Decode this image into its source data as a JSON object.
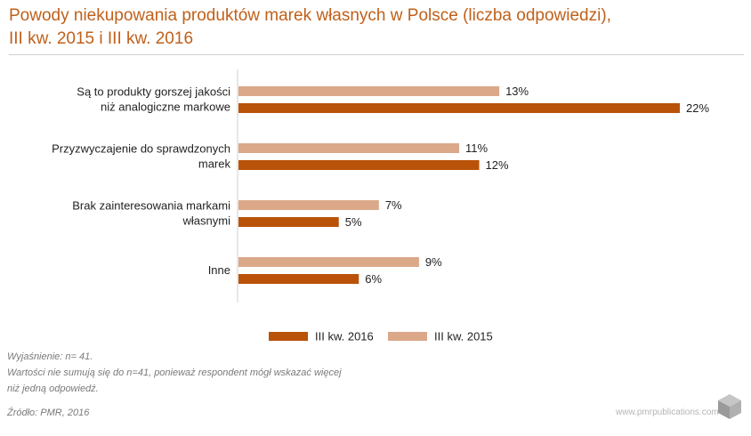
{
  "header": {
    "title_line1": "Powody niekupowania produktów marek własnych w Polsce (liczba odpowiedzi),",
    "title_line2": "III kw. 2015 i III kw. 2016"
  },
  "colors": {
    "series2016": "#b95309",
    "series2015": "#dba889",
    "title": "#c0601a"
  },
  "chart_data": {
    "type": "bar",
    "orientation": "horizontal",
    "title": "Powody niekupowania produktów marek własnych w Polsce (liczba odpowiedzi), III kw. 2015 i III kw. 2016",
    "categories": [
      [
        "Są to produkty gorszej jakości",
        "niż analogiczne markowe"
      ],
      [
        "Przyzwyczajenie do sprawdzonych",
        "marek"
      ],
      [
        "Brak zainteresowania markami",
        "własnymi"
      ],
      [
        "Inne"
      ]
    ],
    "series": [
      {
        "name": "III kw. 2015",
        "values": [
          13,
          11,
          7,
          9
        ],
        "labels": [
          "13%",
          "11%",
          "7%",
          "9%"
        ]
      },
      {
        "name": "III kw. 2016",
        "values": [
          22,
          12,
          5,
          6
        ],
        "labels": [
          "22%",
          "12%",
          "5%",
          "6%"
        ]
      }
    ],
    "unit": "%",
    "xlim": [
      0,
      22
    ],
    "legend_position": "bottom"
  },
  "legend": {
    "label2016": "III kw. 2016",
    "label2015": "III kw. 2015"
  },
  "notes": {
    "line1": "Wyjaśnienie: n= 41.",
    "line2": "Wartości nie sumują się do n=41, ponieważ respondent mógł wskazać więcej",
    "line3": "niż jedną odpowiedź."
  },
  "source": "Źródło: PMR, 2016",
  "site": "www.pmrpublications.com"
}
